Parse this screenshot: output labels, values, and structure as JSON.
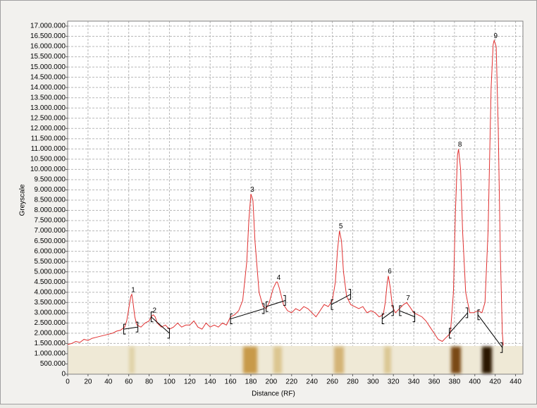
{
  "chart_data": {
    "type": "line",
    "xlabel": "Distance (RF)",
    "ylabel": "Greyscale",
    "xlim": [
      0,
      450
    ],
    "ylim": [
      0,
      17000000
    ],
    "xticks": [
      0,
      20,
      40,
      60,
      80,
      100,
      120,
      140,
      160,
      180,
      200,
      220,
      240,
      260,
      280,
      300,
      320,
      340,
      360,
      380,
      400,
      420,
      440
    ],
    "yticks": [
      0,
      {
        "value": 500000,
        "label": "500.000"
      },
      {
        "value": 1000000,
        "label": "1.000.000"
      },
      {
        "value": 1500000,
        "label": "1.500.000"
      },
      {
        "value": 2000000,
        "label": "2.000.000"
      },
      {
        "value": 2500000,
        "label": "2.500.000"
      },
      {
        "value": 3000000,
        "label": "3.000.000"
      },
      {
        "value": 3500000,
        "label": "3.500.000"
      },
      {
        "value": 4000000,
        "label": "4.000.000"
      },
      {
        "value": 4500000,
        "label": "4.500.000"
      },
      {
        "value": 5000000,
        "label": "5.000.000"
      },
      {
        "value": 5500000,
        "label": "5.500.000"
      },
      {
        "value": 6000000,
        "label": "6.000.000"
      },
      {
        "value": 6500000,
        "label": "6.500.000"
      },
      {
        "value": 7000000,
        "label": "7.000.000"
      },
      {
        "value": 7500000,
        "label": "7.500.000"
      },
      {
        "value": 8000000,
        "label": "8.000.000"
      },
      {
        "value": 8500000,
        "label": "8.500.000"
      },
      {
        "value": 9000000,
        "label": "9.000.000"
      },
      {
        "value": 9500000,
        "label": "9.500.000"
      },
      {
        "value": 10000000,
        "label": "10.000.000"
      },
      {
        "value": 10500000,
        "label": "10.500.000"
      },
      {
        "value": 11000000,
        "label": "11.000.000"
      },
      {
        "value": 11500000,
        "label": "11.500.000"
      },
      {
        "value": 12000000,
        "label": "12.000.000"
      },
      {
        "value": 12500000,
        "label": "12.500.000"
      },
      {
        "value": 13000000,
        "label": "13.000.000"
      },
      {
        "value": 13500000,
        "label": "13.500.000"
      },
      {
        "value": 14000000,
        "label": "14.000.000"
      },
      {
        "value": 14500000,
        "label": "14.500.000"
      },
      {
        "value": 15000000,
        "label": "15.000.000"
      },
      {
        "value": 15500000,
        "label": "15.500.000"
      },
      {
        "value": 16000000,
        "label": "16.000.000"
      },
      {
        "value": 16500000,
        "label": "16.500.000"
      },
      {
        "value": 17000000,
        "label": "17.000.000"
      }
    ],
    "grid": true,
    "color": "#e03030",
    "x": [
      0,
      4,
      8,
      12,
      16,
      20,
      24,
      28,
      32,
      36,
      40,
      44,
      48,
      52,
      56,
      58,
      60,
      62,
      63,
      64,
      66,
      68,
      72,
      76,
      80,
      82,
      84,
      86,
      88,
      92,
      96,
      100,
      104,
      108,
      112,
      116,
      120,
      124,
      128,
      132,
      136,
      140,
      144,
      148,
      152,
      156,
      160,
      164,
      168,
      172,
      176,
      178,
      180,
      182,
      184,
      188,
      192,
      195,
      198,
      202,
      205,
      206,
      208,
      212,
      216,
      220,
      224,
      228,
      232,
      236,
      240,
      244,
      248,
      252,
      256,
      260,
      263,
      265,
      267,
      269,
      271,
      274,
      278,
      282,
      286,
      290,
      294,
      298,
      302,
      306,
      310,
      312,
      314,
      315,
      317,
      319,
      322,
      326,
      330,
      333,
      336,
      340,
      344,
      348,
      352,
      356,
      360,
      364,
      368,
      372,
      376,
      379,
      381,
      383,
      384,
      386,
      388,
      391,
      395,
      399,
      403,
      407,
      410,
      413,
      416,
      418,
      419,
      421,
      423,
      425,
      427,
      428
    ],
    "values": [
      1450000,
      1500000,
      1600000,
      1550000,
      1700000,
      1650000,
      1750000,
      1800000,
      1850000,
      1900000,
      1950000,
      2000000,
      2100000,
      2150000,
      2300000,
      2600000,
      3200000,
      3800000,
      3900000,
      3600000,
      2800000,
      2400000,
      2300000,
      2500000,
      2600000,
      2800000,
      2900000,
      2800000,
      2500000,
      2300000,
      2400000,
      2200000,
      2300000,
      2500000,
      2300000,
      2400000,
      2400000,
      2600000,
      2300000,
      2200000,
      2500000,
      2300000,
      2400000,
      2300000,
      2500000,
      2400000,
      2800000,
      2900000,
      3100000,
      3600000,
      5500000,
      7500000,
      8800000,
      8500000,
      6500000,
      4000000,
      3300000,
      3200000,
      3500000,
      4200000,
      4500000,
      4500000,
      4200000,
      3400000,
      3100000,
      3000000,
      3200000,
      3100000,
      3300000,
      3200000,
      3000000,
      2800000,
      3100000,
      3400000,
      3300000,
      3600000,
      4500000,
      6000000,
      7000000,
      6500000,
      5000000,
      3800000,
      3400000,
      3300000,
      3200000,
      3300000,
      3000000,
      3100000,
      3000000,
      2800000,
      2900000,
      3500000,
      4500000,
      4800000,
      4200000,
      3300000,
      3000000,
      3200000,
      3400000,
      3500000,
      3300000,
      3000000,
      2900000,
      2800000,
      2600000,
      2300000,
      2000000,
      1700000,
      1600000,
      1800000,
      2000000,
      4000000,
      8000000,
      10700000,
      11000000,
      10000000,
      7000000,
      4000000,
      3000000,
      3000000,
      3100000,
      3000000,
      3500000,
      7000000,
      14000000,
      16100000,
      16300000,
      16000000,
      12000000,
      6000000,
      2000000,
      1400000
    ],
    "annotations": [
      {
        "text": "1",
        "x": 63,
        "y": 3900000
      },
      {
        "text": "2",
        "x": 84,
        "y": 2900000
      },
      {
        "text": "3",
        "x": 180,
        "y": 8800000
      },
      {
        "text": "4",
        "x": 206,
        "y": 4500000
      },
      {
        "text": "5",
        "x": 267,
        "y": 7000000
      },
      {
        "text": "6",
        "x": 315,
        "y": 4800000
      },
      {
        "text": "7",
        "x": 333,
        "y": 3500000
      },
      {
        "text": "8",
        "x": 384,
        "y": 11000000
      },
      {
        "text": "9",
        "x": 419,
        "y": 16300000
      }
    ],
    "baselines": [
      [
        55,
        2200000,
        69,
        2300000
      ],
      [
        82,
        2800000,
        100,
        2000000
      ],
      [
        160,
        2700000,
        193,
        3200000
      ],
      [
        195,
        3300000,
        214,
        3600000
      ],
      [
        259,
        3400000,
        278,
        3900000
      ],
      [
        309,
        2700000,
        320,
        3100000
      ],
      [
        326,
        3100000,
        341,
        2800000
      ],
      [
        375,
        2000000,
        393,
        3000000
      ],
      [
        403,
        2900000,
        427,
        1300000
      ]
    ]
  }
}
